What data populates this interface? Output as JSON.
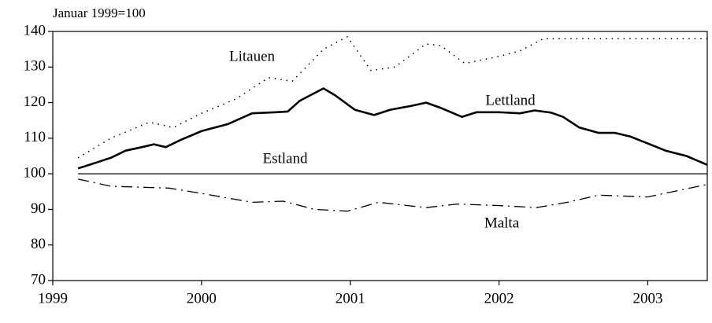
{
  "chart_data": {
    "type": "line",
    "ylabel": "Januar 1999=100",
    "xlim": [
      1999,
      2003.4
    ],
    "xticks": [
      1999,
      2000,
      2001,
      2002,
      2003
    ],
    "ylim": [
      70,
      140
    ],
    "yticks": [
      70,
      80,
      90,
      100,
      110,
      120,
      130,
      140
    ],
    "legend": false,
    "series": [
      {
        "name": "Litauen",
        "color": "#000000",
        "style": "dotted",
        "x": [
          1999.17,
          1999.39,
          1999.65,
          1999.81,
          2000.0,
          2000.23,
          2000.45,
          2000.61,
          2000.82,
          2000.98,
          2001.14,
          2001.3,
          2001.51,
          2001.61,
          2001.77,
          2002.0,
          2002.14,
          2002.3,
          2003.4
        ],
        "values": [
          104.5,
          110,
          114.5,
          113,
          117,
          121,
          127,
          126,
          135,
          138.5,
          129,
          130,
          136.5,
          136,
          131,
          133,
          134.5,
          138,
          138
        ]
      },
      {
        "name": "Lettland",
        "color": "#000000",
        "style": "solid",
        "x": [
          1999.17,
          1999.28,
          1999.39,
          1999.49,
          1999.6,
          1999.68,
          1999.76,
          1999.86,
          2000.0,
          2000.18,
          2000.34,
          2000.5,
          2000.58,
          2000.66,
          2000.82,
          2000.9,
          2001.03,
          2001.16,
          2001.27,
          2001.4,
          2001.51,
          2001.61,
          2001.75,
          2001.85,
          2002.0,
          2002.14,
          2002.24,
          2002.35,
          2002.43,
          2002.54,
          2002.67,
          2002.78,
          2002.88,
          2003.0,
          2003.12,
          2003.26,
          2003.4
        ],
        "values": [
          101.5,
          103,
          104.5,
          106.5,
          107.5,
          108.3,
          107.5,
          109.5,
          112,
          114,
          117,
          117.3,
          117.5,
          120.5,
          124,
          122,
          118,
          116.5,
          118,
          119,
          120,
          118.5,
          116,
          117.3,
          117.3,
          117,
          117.8,
          117.2,
          116,
          113,
          111.5,
          111.5,
          110.5,
          108.5,
          106.5,
          105,
          102.5
        ]
      },
      {
        "name": "Estland",
        "color": "#000000",
        "style": "thin",
        "x": [
          1999.17,
          2003.4
        ],
        "values": [
          100,
          100
        ]
      },
      {
        "name": "Malta",
        "color": "#000000",
        "style": "dashdot",
        "x": [
          1999.17,
          1999.39,
          1999.78,
          2000.0,
          2000.34,
          2000.55,
          2000.76,
          2000.98,
          2001.19,
          2001.4,
          2001.51,
          2001.72,
          2002.04,
          2002.25,
          2002.46,
          2002.67,
          2003.0,
          2003.4
        ],
        "values": [
          98.5,
          96.5,
          96,
          94.5,
          92,
          92.3,
          90,
          89.5,
          92,
          91,
          90.5,
          91.5,
          91,
          90.5,
          92,
          94,
          93.5,
          97
        ]
      }
    ]
  }
}
